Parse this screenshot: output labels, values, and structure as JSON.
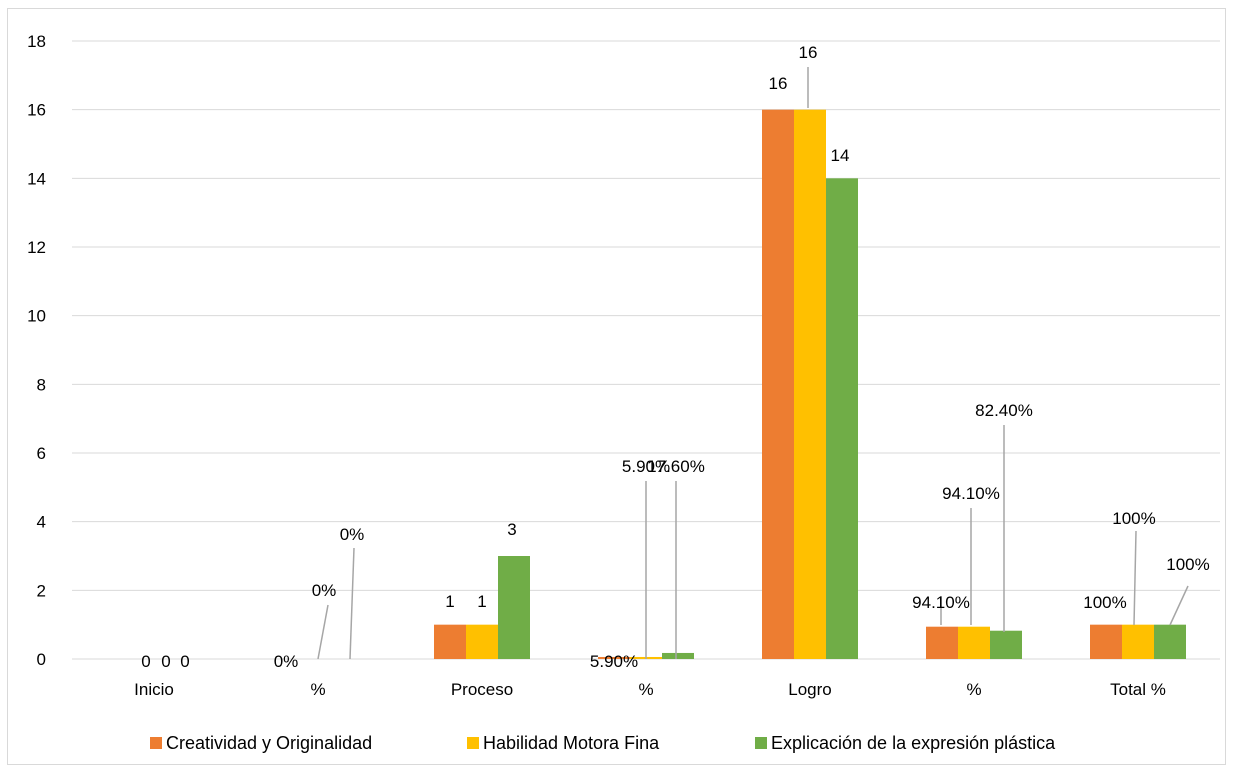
{
  "chart_data": {
    "type": "bar",
    "categories": [
      "Inicio",
      "%",
      "Proceso",
      "%",
      "Logro",
      "%",
      "Total %"
    ],
    "series": [
      {
        "name": "Creatividad y Originalidad",
        "color": "#ED7D31",
        "values": [
          0,
          0,
          1,
          0.059,
          16,
          0.941,
          1
        ],
        "labels": [
          "0",
          "0%",
          "1",
          "5.90%",
          "16",
          "94.10%",
          "100%"
        ]
      },
      {
        "name": "Habilidad Motora Fina",
        "color": "#FFC000",
        "values": [
          0,
          0,
          1,
          0.059,
          16,
          0.941,
          1
        ],
        "labels": [
          "0",
          "0%",
          "1",
          "5.90%",
          "16",
          "94.10%",
          "100%"
        ]
      },
      {
        "name": "Explicación de la expresión plástica",
        "color": "#70AD47",
        "values": [
          0,
          0,
          3,
          0.176,
          14,
          0.824,
          1
        ],
        "labels": [
          "0",
          "0%",
          "3",
          "17.60%",
          "14",
          "82.40%",
          "100%"
        ]
      }
    ],
    "yticks": [
      "0",
      "2",
      "4",
      "6",
      "8",
      "10",
      "12",
      "14",
      "16",
      "18"
    ],
    "ylim": [
      0,
      18
    ],
    "grid": true,
    "legend_position": "bottom",
    "title": "",
    "xlabel": "",
    "ylabel": ""
  }
}
